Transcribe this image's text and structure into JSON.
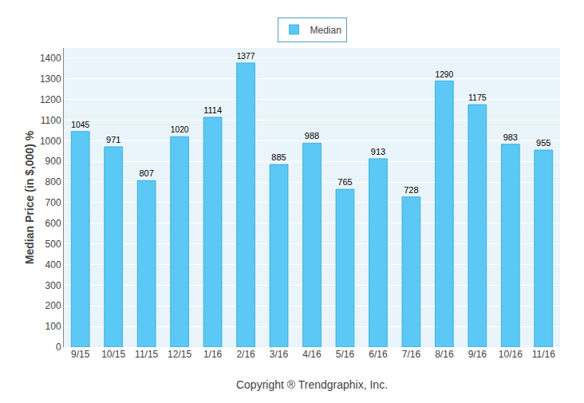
{
  "chart_data": {
    "type": "bar",
    "categories": [
      "9/15",
      "10/15",
      "11/15",
      "12/15",
      "1/16",
      "2/16",
      "3/16",
      "4/16",
      "5/16",
      "6/16",
      "7/16",
      "8/16",
      "9/16",
      "10/16",
      "11/16"
    ],
    "series": [
      {
        "name": "Median",
        "color": "#5BC8F5",
        "values": [
          1045,
          971,
          807,
          1020,
          1114,
          1377,
          885,
          988,
          765,
          913,
          728,
          1290,
          1175,
          983,
          955
        ]
      }
    ],
    "xlabel": "Copyright ® Trendgraphix, Inc.",
    "ylabel": "Median Price (in $,000) %",
    "ylim": [
      0,
      1450
    ],
    "yticks": [
      0,
      100,
      200,
      300,
      400,
      500,
      600,
      700,
      800,
      900,
      1000,
      1100,
      1200,
      1300,
      1400
    ],
    "grid": true,
    "legend": "upper center",
    "data_labels": true
  }
}
